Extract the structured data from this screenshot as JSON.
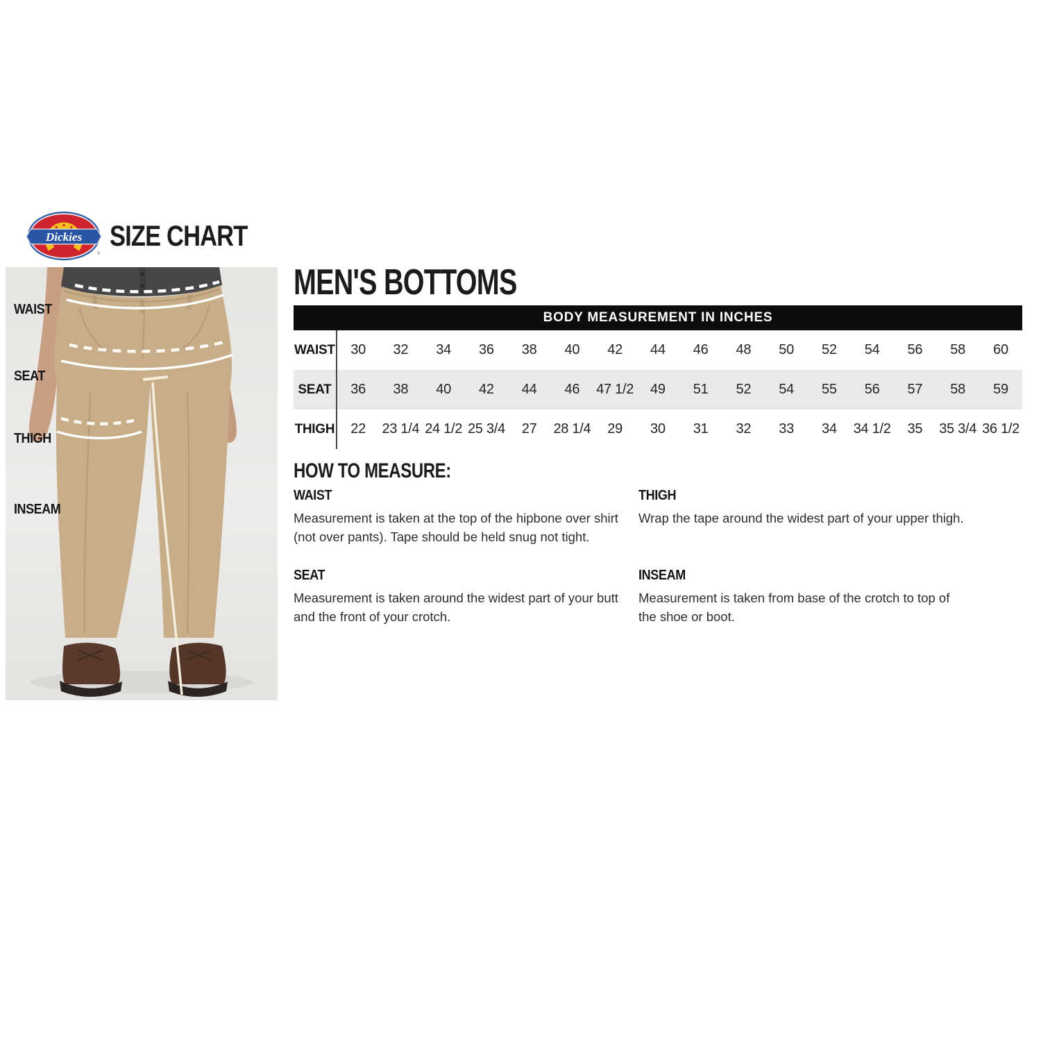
{
  "header": {
    "brand": "Dickies",
    "registered": "®",
    "title": "SIZE CHART"
  },
  "section_title": "MEN'S BOTTOMS",
  "figure": {
    "labels": [
      "WAIST",
      "SEAT",
      "THIGH",
      "INSEAM"
    ]
  },
  "size_table": {
    "header": "BODY MEASUREMENT IN INCHES",
    "rows": [
      {
        "label": "WAIST",
        "values": [
          "30",
          "32",
          "34",
          "36",
          "38",
          "40",
          "42",
          "44",
          "46",
          "48",
          "50",
          "52",
          "54",
          "56",
          "58",
          "60"
        ]
      },
      {
        "label": "SEAT",
        "values": [
          "36",
          "38",
          "40",
          "42",
          "44",
          "46",
          "47 1/2",
          "49",
          "51",
          "52",
          "54",
          "55",
          "56",
          "57",
          "58",
          "59"
        ]
      },
      {
        "label": "THIGH",
        "values": [
          "22",
          "23 1/4",
          "24 1/2",
          "25 3/4",
          "27",
          "28 1/4",
          "29",
          "30",
          "31",
          "32",
          "33",
          "34",
          "34 1/2",
          "35",
          "35 3/4",
          "36 1/2"
        ]
      }
    ]
  },
  "how_to_measure": {
    "title": "HOW TO MEASURE:",
    "items": [
      {
        "label": "WAIST",
        "text": "Measurement is taken at the top of the hipbone over shirt (not over pants). Tape should be held snug not tight."
      },
      {
        "label": "SEAT",
        "text": "Measurement is taken around the widest part of your butt and the front of your crotch."
      },
      {
        "label": "THIGH",
        "text": "Wrap the tape around the widest part of your upper thigh."
      },
      {
        "label": "INSEAM",
        "text": "Measurement is taken from base of the crotch to top of the shoe or boot."
      }
    ]
  },
  "colors": {
    "logo_red": "#d0232e",
    "logo_yellow": "#f3c11d",
    "logo_blue": "#2a55a5",
    "table_bar": "#0d0d0d",
    "row_alt": "#e9e9eb",
    "pants_khaki": "#c7ae88",
    "shirt_gray": "#47474a",
    "photo_bg": "#eae8e5"
  }
}
